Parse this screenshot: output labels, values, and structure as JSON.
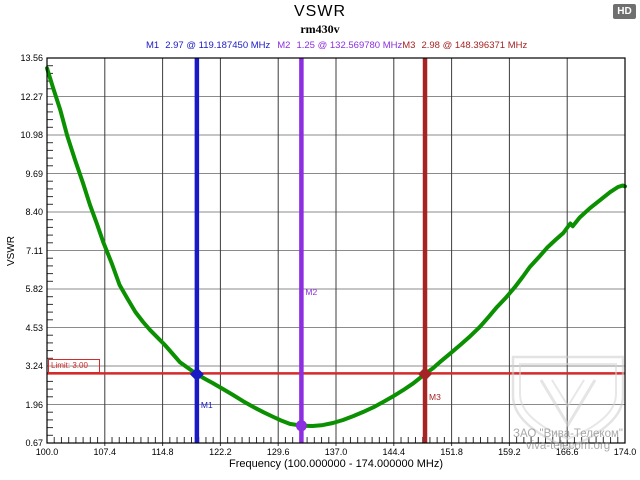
{
  "header": {
    "hd_badge": "HD"
  },
  "watermark": {
    "line1": "ЗАО \"Вива-Телеком\"",
    "line2": "viva-telecom.org"
  },
  "chart_data": {
    "type": "line",
    "title": "VSWR",
    "subtitle": "rm430v",
    "xlabel": "Frequency (100.000000 - 174.000000 MHz)",
    "ylabel": "VSWR",
    "xlim": [
      100.0,
      174.0
    ],
    "ylim": [
      0.67,
      13.56
    ],
    "grid": true,
    "x_ticks": [
      "100.0",
      "107.4",
      "114.8",
      "122.2",
      "129.6",
      "137.0",
      "144.4",
      "151.8",
      "159.2",
      "166.6",
      "174.0"
    ],
    "y_ticks": [
      "13.56",
      "12.27",
      "10.98",
      "9.69",
      "8.40",
      "7.11",
      "5.82",
      "4.53",
      "3.24",
      "1.96",
      "0.67"
    ],
    "limit": {
      "label": "Limit: 3.00",
      "value": 3.0,
      "color": "#d42a2a"
    },
    "markers": [
      {
        "label": "M1",
        "value_text": "2.97 @ 119.187450 MHz",
        "freq_mhz": 119.18745,
        "vswr": 2.97,
        "color": "#1a1ac4",
        "symbol": "diamond"
      },
      {
        "label": "M2",
        "value_text": "1.25 @ 132.569780 MHz",
        "freq_mhz": 132.56978,
        "vswr": 1.25,
        "color": "#8c2fe0",
        "symbol": "dot"
      },
      {
        "label": "M3",
        "value_text": "2.98 @ 148.396371 MHz",
        "freq_mhz": 148.396371,
        "vswr": 2.98,
        "color": "#a52424",
        "symbol": "diamond"
      }
    ],
    "series": [
      {
        "name": "rm430v",
        "color": "#0a9000",
        "points": [
          [
            100.0,
            13.22
          ],
          [
            100.8,
            12.55
          ],
          [
            101.7,
            11.82
          ],
          [
            102.6,
            10.95
          ],
          [
            103.6,
            10.14
          ],
          [
            104.6,
            9.38
          ],
          [
            105.5,
            8.64
          ],
          [
            106.4,
            8.0
          ],
          [
            107.2,
            7.4
          ],
          [
            108.3,
            6.68
          ],
          [
            109.3,
            5.96
          ],
          [
            110.3,
            5.5
          ],
          [
            111.3,
            5.06
          ],
          [
            112.3,
            4.72
          ],
          [
            113.2,
            4.45
          ],
          [
            114.2,
            4.19
          ],
          [
            115.1,
            3.95
          ],
          [
            116.1,
            3.65
          ],
          [
            117.0,
            3.38
          ],
          [
            118.1,
            3.17
          ],
          [
            119.19,
            2.97
          ],
          [
            120.2,
            2.82
          ],
          [
            121.2,
            2.68
          ],
          [
            122.5,
            2.48
          ],
          [
            123.8,
            2.28
          ],
          [
            125.1,
            2.07
          ],
          [
            126.4,
            1.88
          ],
          [
            127.7,
            1.7
          ],
          [
            129.0,
            1.54
          ],
          [
            130.1,
            1.41
          ],
          [
            131.1,
            1.31
          ],
          [
            132.57,
            1.25
          ],
          [
            134.0,
            1.24
          ],
          [
            135.3,
            1.27
          ],
          [
            136.6,
            1.34
          ],
          [
            137.9,
            1.44
          ],
          [
            139.2,
            1.57
          ],
          [
            140.5,
            1.71
          ],
          [
            141.8,
            1.87
          ],
          [
            143.0,
            2.04
          ],
          [
            144.3,
            2.23
          ],
          [
            145.6,
            2.44
          ],
          [
            146.9,
            2.67
          ],
          [
            148.4,
            2.98
          ],
          [
            149.4,
            3.17
          ],
          [
            150.3,
            3.38
          ],
          [
            151.6,
            3.66
          ],
          [
            152.9,
            3.95
          ],
          [
            154.2,
            4.25
          ],
          [
            155.4,
            4.55
          ],
          [
            156.5,
            4.88
          ],
          [
            157.6,
            5.22
          ],
          [
            158.8,
            5.55
          ],
          [
            159.9,
            5.89
          ],
          [
            160.9,
            6.23
          ],
          [
            161.8,
            6.56
          ],
          [
            163.0,
            6.9
          ],
          [
            164.1,
            7.23
          ],
          [
            165.1,
            7.47
          ],
          [
            166.1,
            7.7
          ],
          [
            167.0,
            8.02
          ],
          [
            167.3,
            7.93
          ],
          [
            168.2,
            8.22
          ],
          [
            169.5,
            8.53
          ],
          [
            170.8,
            8.8
          ],
          [
            172.1,
            9.07
          ],
          [
            173.1,
            9.24
          ],
          [
            173.7,
            9.29
          ],
          [
            174.0,
            9.26
          ]
        ]
      }
    ]
  }
}
